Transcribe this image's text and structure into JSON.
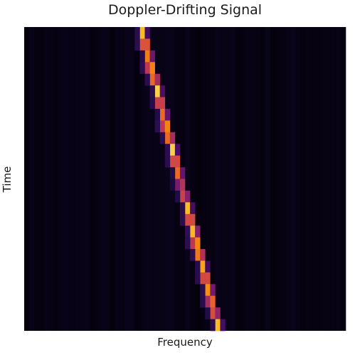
{
  "chart_data": {
    "type": "heatmap",
    "title": "Doppler-Drifting Signal",
    "xlabel": "Frequency",
    "ylabel": "Time",
    "grid": false,
    "colormap": "inferno",
    "background_color": "#03020c",
    "signal": {
      "time_steps": 26,
      "note": "",
      "freq_bins": 64,
      "start_bin": 23,
      "end_bin": 38,
      "intensity": [
        0.85,
        0.9,
        0.8,
        0.9,
        0.85,
        0.9,
        0.8,
        0.75,
        0.9,
        0.85,
        0.9,
        0.85,
        0.75,
        0.6,
        0.7,
        0.85,
        0.85,
        0.95,
        0.9,
        0.9,
        0.8,
        0.85,
        0.85,
        0.8,
        0.75,
        0.85
      ]
    }
  }
}
